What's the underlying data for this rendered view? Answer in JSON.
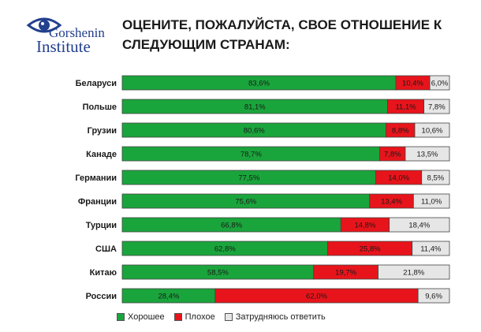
{
  "logo": {
    "line1": "Gorshenin",
    "line2": "Institute"
  },
  "chart_data": {
    "type": "bar",
    "orientation": "horizontal",
    "stacked": true,
    "title": "ОЦЕНИТЕ, ПОЖАЛУЙСТА, СВОЕ ОТНОШЕНИЕ К СЛЕДУЮЩИМ СТРАНАМ:",
    "categories": [
      "Беларуси",
      "Польше",
      "Грузии",
      "Канаде",
      "Германии",
      "Франции",
      "Турции",
      "США",
      "Китаю",
      "России"
    ],
    "series": [
      {
        "name": "Хорошее",
        "color": "#1aa53c",
        "values": [
          83.6,
          81.1,
          80.6,
          78.7,
          77.5,
          75.6,
          66.8,
          62.8,
          58.5,
          28.4
        ]
      },
      {
        "name": "Плохое",
        "color": "#e8141b",
        "values": [
          10.4,
          11.1,
          8.8,
          7.8,
          14.0,
          13.4,
          14.8,
          25.8,
          19.7,
          62.0
        ]
      },
      {
        "name": "Затрудняюсь ответить",
        "color": "#e6e6e6",
        "values": [
          6.0,
          7.8,
          10.6,
          13.5,
          8.5,
          11.0,
          18.4,
          11.4,
          21.8,
          9.6
        ]
      }
    ],
    "labels": [
      [
        "83,6%",
        "10,4%",
        "6,0%"
      ],
      [
        "81,1%",
        "11,1%",
        "7,8%"
      ],
      [
        "80,6%",
        "8,8%",
        "10,6%"
      ],
      [
        "78,7%",
        "7,8%",
        "13,5%"
      ],
      [
        "77,5%",
        "14,0%",
        "8,5%"
      ],
      [
        "75,6%",
        "13,4%",
        "11,0%"
      ],
      [
        "66,8%",
        "14,8%",
        "18,4%"
      ],
      [
        "62,8%",
        "25,8%",
        "11,4%"
      ],
      [
        "58,5%",
        "19,7%",
        "21,8%"
      ],
      [
        "28,4%",
        "62,0%",
        "9,6%"
      ]
    ],
    "xlim": [
      0,
      100
    ],
    "legend_position": "bottom",
    "grid": false
  }
}
